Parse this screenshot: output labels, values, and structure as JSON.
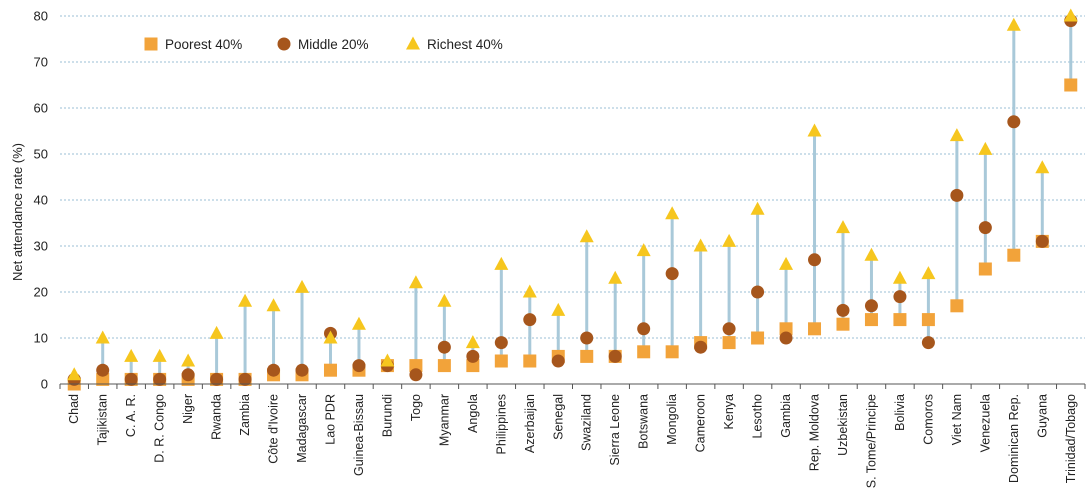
{
  "chart_data": {
    "type": "dot-range",
    "ylabel": "Net attendance rate (%)",
    "ylim": [
      0,
      80
    ],
    "yticks": [
      0,
      10,
      20,
      30,
      40,
      50,
      60,
      70,
      80
    ],
    "grid": true,
    "legend_position": "top-left",
    "categories": [
      "Chad",
      "Tajikistan",
      "C. A. R.",
      "D. R. Congo",
      "Niger",
      "Rwanda",
      "Zambia",
      "Côte d'Ivoire",
      "Madagascar",
      "Lao PDR",
      "Guinea-Bissau",
      "Burundi",
      "Togo",
      "Myanmar",
      "Angola",
      "Philippines",
      "Azerbaijan",
      "Senegal",
      "Swaziland",
      "Sierra Leone",
      "Botswana",
      "Mongolia",
      "Cameroon",
      "Kenya",
      "Lesotho",
      "Gambia",
      "Rep. Moldova",
      "Uzbekistan",
      "S. Tome/Principe",
      "Bolivia",
      "Comoros",
      "Viet Nam",
      "Venezuela",
      "Dominican Rep.",
      "Guyana",
      "Trinidad/Tobago"
    ],
    "series": [
      {
        "name": "Poorest 40%",
        "marker": "square",
        "color": "#f2a33a",
        "values": [
          0,
          1,
          1,
          1,
          1,
          1,
          1,
          2,
          2,
          3,
          3,
          4,
          4,
          4,
          4,
          5,
          5,
          6,
          6,
          6,
          7,
          7,
          9,
          9,
          10,
          12,
          12,
          13,
          14,
          14,
          14,
          17,
          25,
          28,
          31,
          65
        ]
      },
      {
        "name": "Middle 20%",
        "marker": "circle",
        "color": "#a6561c",
        "values": [
          1,
          3,
          1,
          1,
          2,
          1,
          1,
          3,
          3,
          11,
          4,
          4,
          2,
          8,
          6,
          9,
          14,
          5,
          10,
          6,
          12,
          24,
          8,
          12,
          20,
          10,
          27,
          16,
          17,
          19,
          9,
          41,
          34,
          57,
          31,
          79
        ]
      },
      {
        "name": "Richest 40%",
        "marker": "triangle",
        "color": "#f6c61e",
        "values": [
          2,
          10,
          6,
          6,
          5,
          11,
          18,
          17,
          21,
          10,
          13,
          5,
          22,
          18,
          9,
          26,
          20,
          16,
          32,
          23,
          29,
          37,
          30,
          31,
          38,
          26,
          55,
          34,
          28,
          23,
          24,
          54,
          51,
          78,
          47,
          80
        ]
      }
    ],
    "range_line_color": "#a9c9d9",
    "grid_color": "#9bbfd6"
  }
}
